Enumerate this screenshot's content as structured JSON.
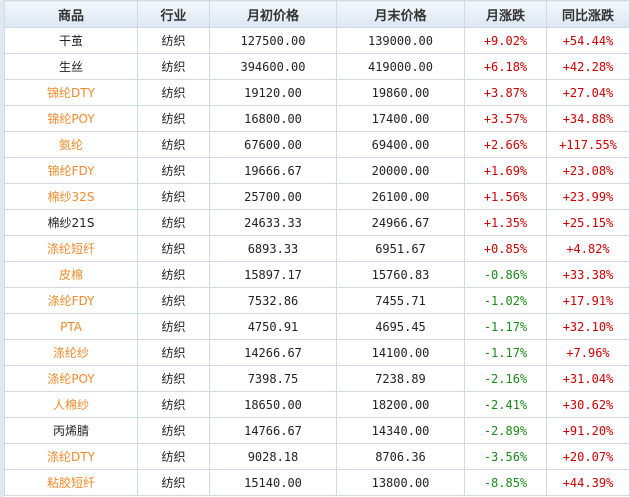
{
  "colors": {
    "link": "#f08a2c",
    "up": "#cc0000",
    "down": "#1a8a1a",
    "text": "#222222"
  },
  "table": {
    "headers": [
      "商品",
      "行业",
      "月初价格",
      "月末价格",
      "月涨跌",
      "同比涨跌"
    ],
    "rows": [
      {
        "name": "干茧",
        "link": false,
        "industry": "纺织",
        "start": "127500.00",
        "end": "139000.00",
        "mom": "+9.02%",
        "yoy": "+54.44%"
      },
      {
        "name": "生丝",
        "link": false,
        "industry": "纺织",
        "start": "394600.00",
        "end": "419000.00",
        "mom": "+6.18%",
        "yoy": "+42.28%"
      },
      {
        "name": "锦纶DTY",
        "link": true,
        "industry": "纺织",
        "start": "19120.00",
        "end": "19860.00",
        "mom": "+3.87%",
        "yoy": "+27.04%"
      },
      {
        "name": "锦纶POY",
        "link": true,
        "industry": "纺织",
        "start": "16800.00",
        "end": "17400.00",
        "mom": "+3.57%",
        "yoy": "+34.88%"
      },
      {
        "name": "氨纶",
        "link": true,
        "industry": "纺织",
        "start": "67600.00",
        "end": "69400.00",
        "mom": "+2.66%",
        "yoy": "+117.55%"
      },
      {
        "name": "锦纶FDY",
        "link": true,
        "industry": "纺织",
        "start": "19666.67",
        "end": "20000.00",
        "mom": "+1.69%",
        "yoy": "+23.08%"
      },
      {
        "name": "棉纱32S",
        "link": true,
        "industry": "纺织",
        "start": "25700.00",
        "end": "26100.00",
        "mom": "+1.56%",
        "yoy": "+23.99%"
      },
      {
        "name": "棉纱21S",
        "link": false,
        "industry": "纺织",
        "start": "24633.33",
        "end": "24966.67",
        "mom": "+1.35%",
        "yoy": "+25.15%"
      },
      {
        "name": "涤纶短纤",
        "link": true,
        "industry": "纺织",
        "start": "6893.33",
        "end": "6951.67",
        "mom": "+0.85%",
        "yoy": "+4.82%"
      },
      {
        "name": "皮棉",
        "link": true,
        "industry": "纺织",
        "start": "15897.17",
        "end": "15760.83",
        "mom": "-0.86%",
        "yoy": "+33.38%"
      },
      {
        "name": "涤纶FDY",
        "link": true,
        "industry": "纺织",
        "start": "7532.86",
        "end": "7455.71",
        "mom": "-1.02%",
        "yoy": "+17.91%"
      },
      {
        "name": "PTA",
        "link": true,
        "industry": "纺织",
        "start": "4750.91",
        "end": "4695.45",
        "mom": "-1.17%",
        "yoy": "+32.10%"
      },
      {
        "name": "涤纶纱",
        "link": true,
        "industry": "纺织",
        "start": "14266.67",
        "end": "14100.00",
        "mom": "-1.17%",
        "yoy": "+7.96%"
      },
      {
        "name": "涤纶POY",
        "link": true,
        "industry": "纺织",
        "start": "7398.75",
        "end": "7238.89",
        "mom": "-2.16%",
        "yoy": "+31.04%"
      },
      {
        "name": "人棉纱",
        "link": true,
        "industry": "纺织",
        "start": "18650.00",
        "end": "18200.00",
        "mom": "-2.41%",
        "yoy": "+30.62%"
      },
      {
        "name": "丙烯腈",
        "link": false,
        "industry": "纺织",
        "start": "14766.67",
        "end": "14340.00",
        "mom": "-2.89%",
        "yoy": "+91.20%"
      },
      {
        "name": "涤纶DTY",
        "link": true,
        "industry": "纺织",
        "start": "9028.18",
        "end": "8706.36",
        "mom": "-3.56%",
        "yoy": "+20.07%"
      },
      {
        "name": "粘胶短纤",
        "link": true,
        "industry": "纺织",
        "start": "15140.00",
        "end": "13800.00",
        "mom": "-8.85%",
        "yoy": "+44.39%"
      }
    ]
  }
}
